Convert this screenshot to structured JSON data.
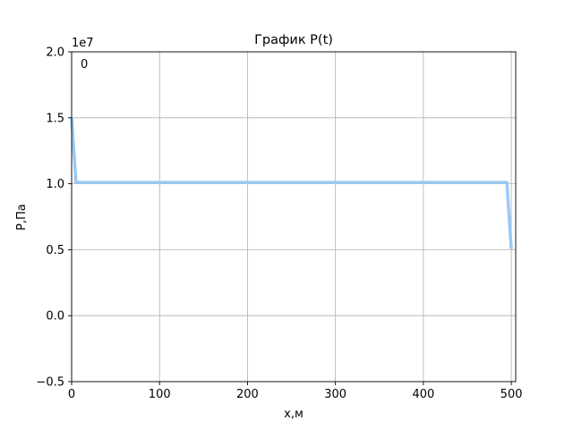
{
  "chart_data": {
    "type": "line",
    "title": "График P(t)",
    "xlabel": "x,м",
    "ylabel": "P,Па",
    "offset_label": "1e7",
    "annotation": "0",
    "xlim": [
      0,
      505
    ],
    "ylim": [
      -0.5,
      2.0
    ],
    "x_ticks": [
      0,
      100,
      200,
      300,
      400,
      500
    ],
    "x_tick_labels": [
      "0",
      "100",
      "200",
      "300",
      "400",
      "500"
    ],
    "y_ticks": [
      -0.5,
      0.0,
      0.5,
      1.0,
      1.5,
      2.0
    ],
    "y_tick_labels": [
      "−0.5",
      "0.0",
      "0.5",
      "1.0",
      "1.5",
      "2.0"
    ],
    "grid": true,
    "series": [
      {
        "color": "#99c9f5",
        "x": [
          0,
          5,
          10,
          490,
          495,
          500
        ],
        "y": [
          1.5,
          1.01,
          1.01,
          1.01,
          1.01,
          0.5
        ]
      }
    ]
  }
}
